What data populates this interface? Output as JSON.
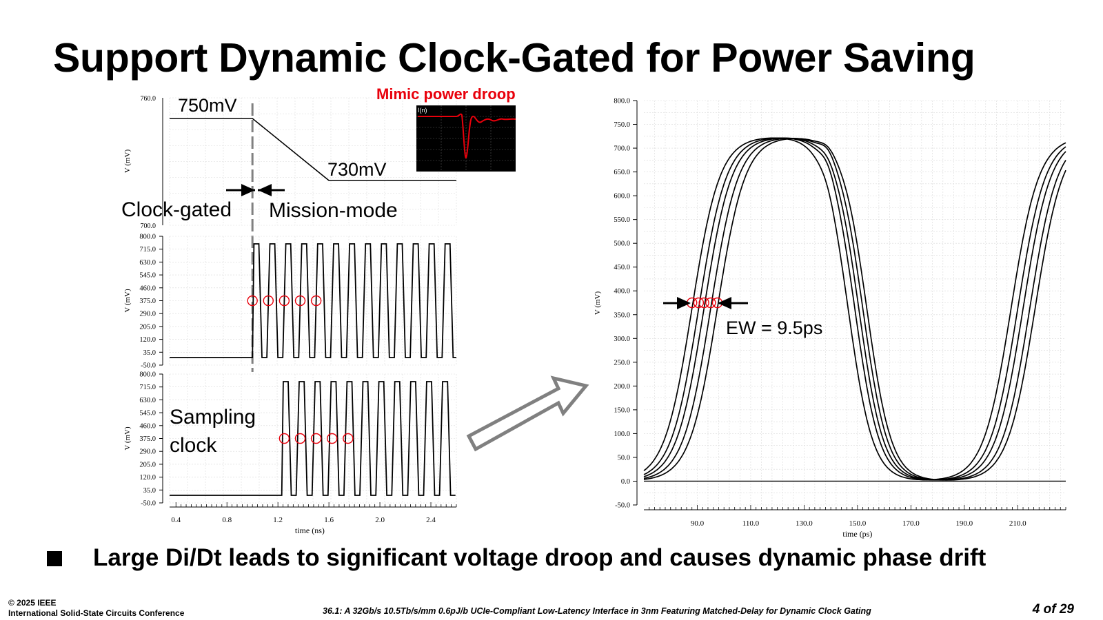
{
  "slide": {
    "title": "Support Dynamic Clock-Gated for Power Saving",
    "bullet": "Large Di/Dt leads to significant voltage droop and causes dynamic phase drift",
    "footer_left_1": "© 2025 IEEE",
    "footer_left_2": "International Solid-State Circuits Conference",
    "footer_center": "36.1: A 32Gb/s 10.5Tb/s/mm 0.6pJ/b UCIe-Compliant Low-Latency Interface in 3nm Featuring Matched-Delay for Dynamic Clock Gating",
    "footer_right": "4 of 29"
  },
  "annotations": {
    "v_high": "750mV",
    "v_low": "730mV",
    "clock_gated": "Clock-gated",
    "mission_mode": "Mission-mode",
    "mimic": "Mimic power droop",
    "inset_label": "I(n)",
    "sampling_1": "Sampling",
    "sampling_2": "clock",
    "ew": "EW = 9.5ps"
  },
  "colors": {
    "accent_red": "#e8000b",
    "trace": "#000000",
    "grid": "#d9d9d9",
    "arrow": "#808080"
  },
  "chart_data": [
    {
      "type": "line",
      "name": "supply",
      "ylabel": "V (mV)",
      "yticks": [
        "760.0",
        "700.0"
      ],
      "x": [
        0.35,
        1.0,
        1.6,
        2.6
      ],
      "y": [
        750,
        750,
        730,
        730
      ]
    },
    {
      "type": "line",
      "name": "clock",
      "ylabel": "V (mV)",
      "ylim": [
        -50,
        800
      ],
      "yticks": [
        "800.0",
        "715.0",
        "630.0",
        "545.0",
        "460.0",
        "375.0",
        "290.0",
        "205.0",
        "120.0",
        "35.0",
        "-50.0"
      ],
      "low": 0,
      "high": 750,
      "start_ns": 1.0,
      "period_ns": 0.125,
      "markers_ns": [
        1.0,
        1.125,
        1.25,
        1.375,
        1.5
      ],
      "marker_v": 375
    },
    {
      "type": "line",
      "name": "sampling clock",
      "ylabel": "V (mV)",
      "xlabel": "time (ns)",
      "ylim": [
        -50,
        800
      ],
      "yticks": [
        "800.0",
        "715.0",
        "630.0",
        "545.0",
        "460.0",
        "375.0",
        "290.0",
        "205.0",
        "120.0",
        "35.0",
        "-50.0"
      ],
      "xticks": [
        "0.4",
        "0.8",
        "1.2",
        "1.6",
        "2.0",
        "2.4"
      ],
      "low": 0,
      "high": 750,
      "start_ns": 1.23,
      "period_ns": 0.125,
      "markers_ns": [
        1.25,
        1.375,
        1.5,
        1.625,
        1.75
      ],
      "marker_v": 375
    },
    {
      "type": "line",
      "name": "eye",
      "ylabel": "V (mV)",
      "xlabel": "time (ps)",
      "xlim": [
        70,
        228
      ],
      "ylim": [
        -50,
        800
      ],
      "yticks": [
        "800.0",
        "750.0",
        "700.0",
        "650.0",
        "600.0",
        "550.0",
        "500.0",
        "450.0",
        "400.0",
        "350.0",
        "300.0",
        "250.0",
        "200.0",
        "150.0",
        "100.0",
        "50.0",
        "0.0",
        "-50.0"
      ],
      "xticks": [
        "90.0",
        "110.0",
        "130.0",
        "150.0",
        "170.0",
        "190.0",
        "210.0"
      ],
      "rise_cross_ps": [
        88,
        90.5,
        92.5,
        95,
        97.5
      ],
      "fall_cross_ps": [
        146.5,
        149,
        150.5,
        152,
        153.5
      ],
      "next_rise_cross_ps": [
        207.5,
        210,
        212,
        214.5,
        216.5
      ],
      "eye_width_ps": 9.5
    }
  ]
}
